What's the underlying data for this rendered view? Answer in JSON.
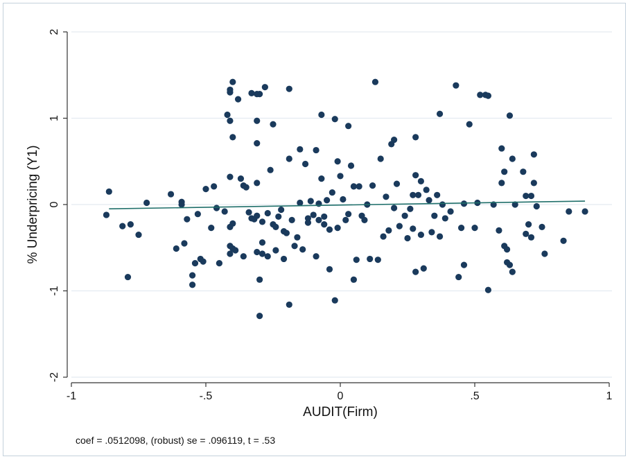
{
  "chart_data": {
    "type": "scatter",
    "title": "",
    "xlabel": "AUDIT(Firm)",
    "ylabel": "% Underpricing (Y1)",
    "xlim": [
      -1,
      1
    ],
    "ylim": [
      -2,
      2
    ],
    "xticks": [
      -1,
      -0.5,
      0,
      0.5,
      1
    ],
    "xtick_labels": [
      "-1",
      "-.5",
      "0",
      ".5",
      "1"
    ],
    "yticks": [
      -2,
      -1,
      0,
      1,
      2
    ],
    "ytick_labels": [
      "-2",
      "-1",
      "0",
      "1",
      "2"
    ],
    "grid": "horizontal",
    "legend": "none",
    "colors": {
      "points": "#1a3a5c",
      "fit_line": "#1f6f6a",
      "grid": "#e4ebf1",
      "axis": "#333333"
    },
    "note": "coef = .0512098, (robust) se = .096119, t = .53",
    "fit_line": {
      "x": [
        -0.86,
        0.91
      ],
      "y": [
        -0.05,
        0.04
      ]
    },
    "points": [
      [
        -0.86,
        0.15
      ],
      [
        -0.87,
        -0.12
      ],
      [
        -0.81,
        -0.25
      ],
      [
        -0.78,
        -0.23
      ],
      [
        -0.79,
        -0.84
      ],
      [
        -0.75,
        -0.35
      ],
      [
        -0.72,
        0.02
      ],
      [
        -0.63,
        0.12
      ],
      [
        -0.61,
        -0.51
      ],
      [
        -0.59,
        0.03
      ],
      [
        -0.59,
        0.0
      ],
      [
        -0.58,
        -0.45
      ],
      [
        -0.57,
        -0.17
      ],
      [
        -0.55,
        -0.82
      ],
      [
        -0.55,
        -0.93
      ],
      [
        -0.54,
        -0.68
      ],
      [
        -0.53,
        -0.11
      ],
      [
        -0.52,
        -0.63
      ],
      [
        -0.51,
        -0.66
      ],
      [
        -0.5,
        0.18
      ],
      [
        -0.48,
        -0.27
      ],
      [
        -0.47,
        0.21
      ],
      [
        -0.46,
        -0.04
      ],
      [
        -0.45,
        -0.68
      ],
      [
        -0.43,
        -0.08
      ],
      [
        -0.42,
        1.04
      ],
      [
        -0.41,
        1.33
      ],
      [
        -0.41,
        1.3
      ],
      [
        -0.41,
        0.97
      ],
      [
        -0.4,
        1.42
      ],
      [
        -0.4,
        0.78
      ],
      [
        -0.41,
        0.32
      ],
      [
        -0.41,
        -0.26
      ],
      [
        -0.4,
        -0.22
      ],
      [
        -0.41,
        -0.48
      ],
      [
        -0.41,
        -0.57
      ],
      [
        -0.4,
        -0.51
      ],
      [
        -0.39,
        -0.53
      ],
      [
        -0.38,
        1.22
      ],
      [
        -0.37,
        0.3
      ],
      [
        -0.36,
        0.22
      ],
      [
        -0.36,
        -0.6
      ],
      [
        -0.35,
        0.2
      ],
      [
        -0.34,
        -0.09
      ],
      [
        -0.33,
        -0.16
      ],
      [
        -0.33,
        1.29
      ],
      [
        -0.32,
        -0.17
      ],
      [
        -0.31,
        1.28
      ],
      [
        -0.31,
        0.71
      ],
      [
        -0.31,
        0.97
      ],
      [
        -0.31,
        0.25
      ],
      [
        -0.31,
        -0.13
      ],
      [
        -0.31,
        -0.55
      ],
      [
        -0.3,
        -0.87
      ],
      [
        -0.3,
        -1.29
      ],
      [
        -0.3,
        1.28
      ],
      [
        -0.29,
        -0.2
      ],
      [
        -0.29,
        -0.44
      ],
      [
        -0.29,
        -0.57
      ],
      [
        -0.28,
        1.36
      ],
      [
        -0.27,
        -0.1
      ],
      [
        -0.27,
        -0.6
      ],
      [
        -0.26,
        0.4
      ],
      [
        -0.25,
        0.93
      ],
      [
        -0.25,
        -0.23
      ],
      [
        -0.24,
        -0.26
      ],
      [
        -0.24,
        -0.53
      ],
      [
        -0.23,
        -0.14
      ],
      [
        -0.22,
        -0.06
      ],
      [
        -0.21,
        -0.31
      ],
      [
        -0.21,
        -0.63
      ],
      [
        -0.2,
        -0.33
      ],
      [
        -0.19,
        0.53
      ],
      [
        -0.19,
        -1.16
      ],
      [
        -0.19,
        1.34
      ],
      [
        -0.18,
        -0.18
      ],
      [
        -0.17,
        -0.48
      ],
      [
        -0.16,
        -0.38
      ],
      [
        -0.15,
        0.02
      ],
      [
        -0.15,
        0.64
      ],
      [
        -0.14,
        -0.52
      ],
      [
        -0.13,
        0.47
      ],
      [
        -0.12,
        -0.21
      ],
      [
        -0.12,
        -0.16
      ],
      [
        -0.11,
        0.04
      ],
      [
        -0.1,
        -0.12
      ],
      [
        -0.09,
        0.63
      ],
      [
        -0.09,
        -0.6
      ],
      [
        -0.08,
        0.01
      ],
      [
        -0.08,
        -0.18
      ],
      [
        -0.07,
        0.3
      ],
      [
        -0.07,
        1.04
      ],
      [
        -0.06,
        -0.23
      ],
      [
        -0.06,
        -0.14
      ],
      [
        -0.05,
        0.05
      ],
      [
        -0.04,
        -0.75
      ],
      [
        -0.04,
        -0.29
      ],
      [
        -0.03,
        0.14
      ],
      [
        -0.02,
        -1.11
      ],
      [
        -0.02,
        0.99
      ],
      [
        -0.01,
        0.5
      ],
      [
        -0.01,
        -0.27
      ],
      [
        0.0,
        0.33
      ],
      [
        0.01,
        0.06
      ],
      [
        0.02,
        -0.18
      ],
      [
        0.03,
        0.91
      ],
      [
        0.03,
        -0.11
      ],
      [
        0.04,
        0.45
      ],
      [
        0.05,
        -0.87
      ],
      [
        0.05,
        0.21
      ],
      [
        0.06,
        -0.64
      ],
      [
        0.07,
        0.21
      ],
      [
        0.08,
        -0.13
      ],
      [
        0.09,
        -0.18
      ],
      [
        0.1,
        0.0
      ],
      [
        0.11,
        -0.63
      ],
      [
        0.12,
        0.22
      ],
      [
        0.13,
        1.42
      ],
      [
        0.14,
        -0.64
      ],
      [
        0.15,
        0.53
      ],
      [
        0.16,
        -0.37
      ],
      [
        0.17,
        0.09
      ],
      [
        0.18,
        -0.3
      ],
      [
        0.19,
        0.7
      ],
      [
        0.2,
        0.75
      ],
      [
        0.2,
        -0.04
      ],
      [
        0.21,
        0.24
      ],
      [
        0.22,
        -0.25
      ],
      [
        0.24,
        -0.13
      ],
      [
        0.25,
        -0.39
      ],
      [
        0.26,
        -0.05
      ],
      [
        0.27,
        -0.28
      ],
      [
        0.27,
        0.11
      ],
      [
        0.28,
        0.78
      ],
      [
        0.28,
        0.34
      ],
      [
        0.28,
        -0.78
      ],
      [
        0.29,
        0.11
      ],
      [
        0.3,
        0.27
      ],
      [
        0.3,
        -0.35
      ],
      [
        0.31,
        -0.74
      ],
      [
        0.32,
        0.17
      ],
      [
        0.33,
        0.05
      ],
      [
        0.34,
        -0.32
      ],
      [
        0.35,
        -0.13
      ],
      [
        0.36,
        0.11
      ],
      [
        0.37,
        -0.37
      ],
      [
        0.37,
        1.05
      ],
      [
        0.38,
        0.0
      ],
      [
        0.39,
        -0.16
      ],
      [
        0.41,
        -0.08
      ],
      [
        0.43,
        1.38
      ],
      [
        0.44,
        -0.84
      ],
      [
        0.45,
        -0.27
      ],
      [
        0.46,
        0.01
      ],
      [
        0.46,
        -0.7
      ],
      [
        0.48,
        0.93
      ],
      [
        0.5,
        -0.27
      ],
      [
        0.51,
        0.02
      ],
      [
        0.52,
        1.27
      ],
      [
        0.54,
        1.27
      ],
      [
        0.55,
        1.26
      ],
      [
        0.55,
        -0.99
      ],
      [
        0.57,
        0.0
      ],
      [
        0.59,
        -0.3
      ],
      [
        0.6,
        0.65
      ],
      [
        0.6,
        0.25
      ],
      [
        0.61,
        0.38
      ],
      [
        0.61,
        -0.48
      ],
      [
        0.62,
        -0.52
      ],
      [
        0.62,
        -0.67
      ],
      [
        0.63,
        1.03
      ],
      [
        0.63,
        -0.7
      ],
      [
        0.64,
        0.53
      ],
      [
        0.64,
        -0.78
      ],
      [
        0.65,
        0.0
      ],
      [
        0.68,
        0.38
      ],
      [
        0.69,
        0.1
      ],
      [
        0.69,
        -0.34
      ],
      [
        0.7,
        -0.23
      ],
      [
        0.71,
        0.1
      ],
      [
        0.71,
        -0.38
      ],
      [
        0.72,
        0.58
      ],
      [
        0.72,
        0.25
      ],
      [
        0.73,
        -0.02
      ],
      [
        0.75,
        -0.26
      ],
      [
        0.76,
        -0.57
      ],
      [
        0.83,
        -0.42
      ],
      [
        0.85,
        -0.08
      ],
      [
        0.91,
        -0.08
      ]
    ]
  }
}
